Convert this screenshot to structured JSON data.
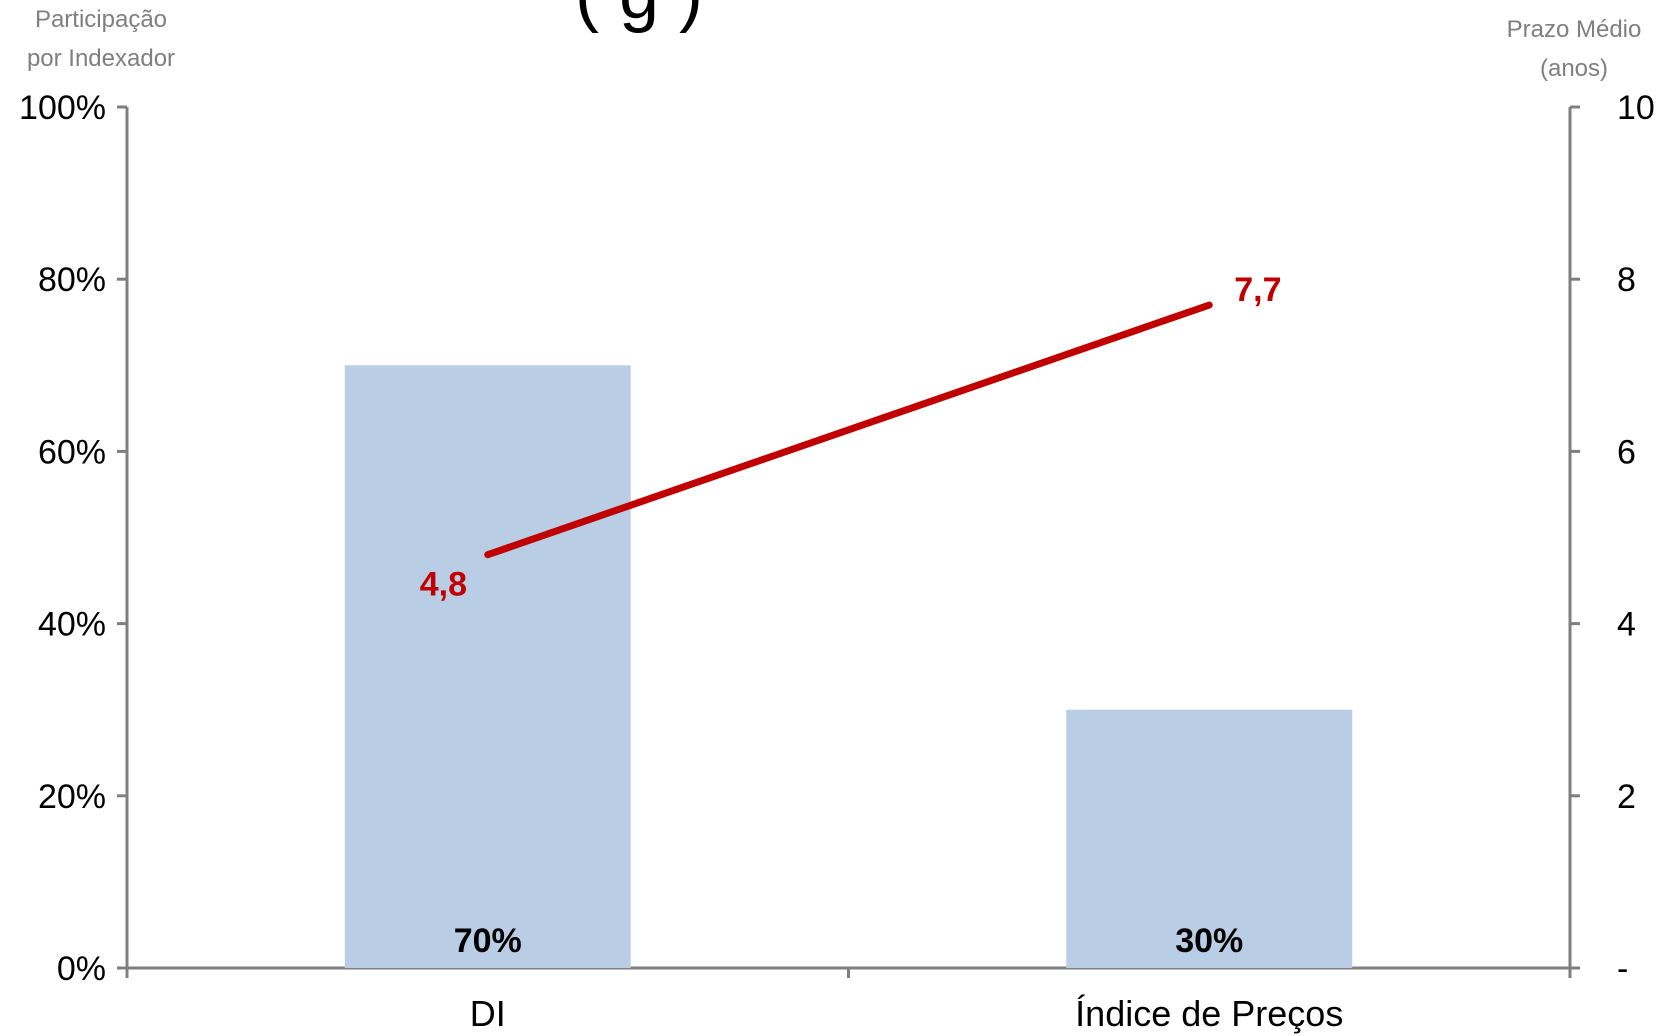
{
  "chart_data": {
    "type": "bar",
    "title_visible_fragment": "( g )",
    "categories": [
      "DI",
      "Índice de Preços"
    ],
    "left_axis": {
      "title_lines": [
        "Participação",
        "por Indexador"
      ],
      "ticks": [
        "0%",
        "20%",
        "40%",
        "60%",
        "80%",
        "100%"
      ],
      "ylim": [
        0,
        100
      ]
    },
    "right_axis": {
      "title_lines": [
        "Prazo Médio",
        "(anos)"
      ],
      "ticks": [
        "-",
        "2",
        "4",
        "6",
        "8",
        "10"
      ],
      "ylim": [
        0,
        10
      ]
    },
    "bars": {
      "values": [
        70,
        30
      ],
      "labels": [
        "70%",
        "30%"
      ],
      "color": "#b9cde5"
    },
    "line": {
      "values": [
        4.8,
        7.7
      ],
      "labels": [
        "4,8",
        "7,7"
      ],
      "color": "#c00000"
    },
    "grid": false,
    "legend": "none"
  }
}
